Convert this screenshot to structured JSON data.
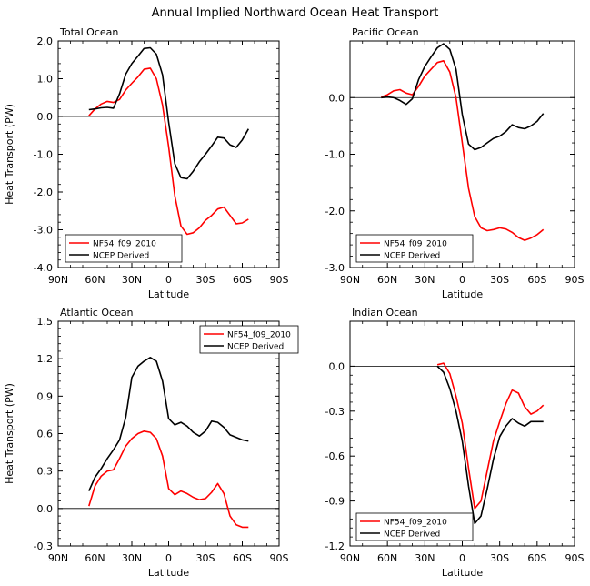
{
  "figure_title": "Annual Implied Northward Ocean Heat Transport",
  "colors": {
    "model": "#ff0000",
    "obs": "#000000",
    "zero_line": "#000000"
  },
  "chart_data": [
    {
      "type": "line",
      "title": "Total Ocean",
      "xlabel": "Latitude",
      "ylabel": "Heat Transport (PW)",
      "xlim": [
        -90,
        90
      ],
      "ylim": [
        -4.0,
        2.0
      ],
      "xticks": [
        -90,
        -60,
        -30,
        0,
        30,
        60,
        90
      ],
      "xticklabels": [
        "90N",
        "60N",
        "30N",
        "0",
        "30S",
        "60S",
        "90S"
      ],
      "yticks": [
        -4.0,
        -3.0,
        -2.0,
        -1.0,
        0.0,
        1.0,
        2.0
      ],
      "yticklabels": [
        "-4.0",
        "-3.0",
        "-2.0",
        "-1.0",
        "0.0",
        "1.0",
        "2.0"
      ],
      "legend_position": "lower-left",
      "series": [
        {
          "name": "NF54_f09_2010",
          "color": "#ff0000",
          "x": [
            -65,
            -60,
            -55,
            -50,
            -45,
            -40,
            -35,
            -30,
            -25,
            -20,
            -15,
            -10,
            -5,
            0,
            5,
            10,
            15,
            20,
            25,
            30,
            35,
            40,
            45,
            50,
            55,
            60,
            65
          ],
          "y": [
            0.02,
            0.2,
            0.33,
            0.4,
            0.37,
            0.45,
            0.7,
            0.88,
            1.05,
            1.25,
            1.28,
            1.0,
            0.3,
            -0.8,
            -2.1,
            -2.9,
            -3.12,
            -3.08,
            -2.95,
            -2.75,
            -2.62,
            -2.45,
            -2.4,
            -2.62,
            -2.84,
            -2.82,
            -2.72
          ]
        },
        {
          "name": "NCEP Derived",
          "color": "#000000",
          "x": [
            -65,
            -60,
            -55,
            -50,
            -45,
            -40,
            -35,
            -30,
            -25,
            -20,
            -15,
            -10,
            -5,
            0,
            5,
            10,
            15,
            20,
            25,
            30,
            35,
            40,
            45,
            50,
            55,
            60,
            65
          ],
          "y": [
            0.18,
            0.2,
            0.23,
            0.24,
            0.22,
            0.6,
            1.12,
            1.4,
            1.6,
            1.8,
            1.82,
            1.65,
            1.1,
            -0.15,
            -1.25,
            -1.62,
            -1.65,
            -1.45,
            -1.2,
            -1.0,
            -0.78,
            -0.55,
            -0.57,
            -0.75,
            -0.82,
            -0.62,
            -0.33
          ]
        }
      ]
    },
    {
      "type": "line",
      "title": "Pacific Ocean",
      "xlabel": "Latitude",
      "ylabel": "",
      "xlim": [
        -90,
        90
      ],
      "ylim": [
        -3.0,
        1.0
      ],
      "xticks": [
        -90,
        -60,
        -30,
        0,
        30,
        60,
        90
      ],
      "xticklabels": [
        "90N",
        "60N",
        "30N",
        "0",
        "30S",
        "60S",
        "90S"
      ],
      "yticks": [
        -3.0,
        -2.0,
        -1.0,
        0.0
      ],
      "yticklabels": [
        "-3.0",
        "-2.0",
        "-1.0",
        "0.0"
      ],
      "legend_position": "lower-left",
      "series": [
        {
          "name": "NF54_f09_2010",
          "color": "#ff0000",
          "x": [
            -65,
            -60,
            -55,
            -50,
            -45,
            -40,
            -35,
            -30,
            -25,
            -20,
            -15,
            -10,
            -5,
            0,
            5,
            10,
            15,
            20,
            25,
            30,
            35,
            40,
            45,
            50,
            55,
            60,
            65
          ],
          "y": [
            0.01,
            0.05,
            0.12,
            0.14,
            0.08,
            0.05,
            0.2,
            0.38,
            0.5,
            0.62,
            0.65,
            0.45,
            0.0,
            -0.8,
            -1.6,
            -2.1,
            -2.3,
            -2.35,
            -2.33,
            -2.3,
            -2.32,
            -2.38,
            -2.47,
            -2.52,
            -2.48,
            -2.42,
            -2.33
          ]
        },
        {
          "name": "NCEP Derived",
          "color": "#000000",
          "x": [
            -65,
            -60,
            -55,
            -50,
            -45,
            -40,
            -35,
            -30,
            -25,
            -20,
            -15,
            -10,
            -5,
            0,
            5,
            10,
            15,
            20,
            25,
            30,
            35,
            40,
            45,
            50,
            55,
            60,
            65
          ],
          "y": [
            0.0,
            0.01,
            0.0,
            -0.05,
            -0.12,
            -0.02,
            0.32,
            0.55,
            0.72,
            0.88,
            0.95,
            0.85,
            0.5,
            -0.3,
            -0.82,
            -0.92,
            -0.88,
            -0.8,
            -0.72,
            -0.68,
            -0.6,
            -0.48,
            -0.53,
            -0.55,
            -0.5,
            -0.42,
            -0.28
          ]
        }
      ]
    },
    {
      "type": "line",
      "title": "Atlantic Ocean",
      "xlabel": "Latitude",
      "ylabel": "Heat Transport (PW)",
      "xlim": [
        -90,
        90
      ],
      "ylim": [
        -0.3,
        1.5
      ],
      "xticks": [
        -90,
        -60,
        -30,
        0,
        30,
        60,
        90
      ],
      "xticklabels": [
        "90N",
        "60N",
        "30N",
        "0",
        "30S",
        "60S",
        "90S"
      ],
      "yticks": [
        -0.3,
        0.0,
        0.3,
        0.6,
        0.9,
        1.2,
        1.5
      ],
      "yticklabels": [
        "-0.3",
        "0.0",
        "0.3",
        "0.6",
        "0.9",
        "1.2",
        "1.5"
      ],
      "legend_position": "top-right",
      "series": [
        {
          "name": "NF54_f09_2010",
          "color": "#ff0000",
          "x": [
            -65,
            -60,
            -55,
            -50,
            -45,
            -40,
            -35,
            -30,
            -25,
            -20,
            -15,
            -10,
            -5,
            0,
            5,
            10,
            15,
            20,
            25,
            30,
            35,
            40,
            45,
            50,
            55,
            60,
            65
          ],
          "y": [
            0.02,
            0.18,
            0.26,
            0.3,
            0.31,
            0.4,
            0.5,
            0.56,
            0.6,
            0.62,
            0.61,
            0.56,
            0.42,
            0.16,
            0.11,
            0.14,
            0.12,
            0.09,
            0.07,
            0.08,
            0.13,
            0.2,
            0.12,
            -0.06,
            -0.13,
            -0.15,
            -0.15
          ]
        },
        {
          "name": "NCEP Derived",
          "color": "#000000",
          "x": [
            -65,
            -60,
            -55,
            -50,
            -45,
            -40,
            -35,
            -30,
            -25,
            -20,
            -15,
            -10,
            -5,
            0,
            5,
            10,
            15,
            20,
            25,
            30,
            35,
            40,
            45,
            50,
            55,
            60,
            65
          ],
          "y": [
            0.14,
            0.25,
            0.32,
            0.4,
            0.47,
            0.55,
            0.73,
            1.05,
            1.14,
            1.18,
            1.21,
            1.18,
            1.02,
            0.72,
            0.67,
            0.69,
            0.66,
            0.61,
            0.58,
            0.62,
            0.7,
            0.69,
            0.65,
            0.59,
            0.57,
            0.55,
            0.54
          ]
        }
      ]
    },
    {
      "type": "line",
      "title": "Indian Ocean",
      "xlabel": "Latitude",
      "ylabel": "",
      "xlim": [
        -90,
        90
      ],
      "ylim": [
        -1.2,
        0.3
      ],
      "xticks": [
        -90,
        -60,
        -30,
        0,
        30,
        60,
        90
      ],
      "xticklabels": [
        "90N",
        "60N",
        "30N",
        "0",
        "30S",
        "60S",
        "90S"
      ],
      "yticks": [
        -1.2,
        -0.9,
        -0.6,
        -0.3,
        0.0
      ],
      "yticklabels": [
        "-1.2",
        "-0.9",
        "-0.6",
        "-0.3",
        "0.0"
      ],
      "legend_position": "lower-left",
      "series": [
        {
          "name": "NF54_f09_2010",
          "color": "#ff0000",
          "x": [
            -20,
            -15,
            -10,
            -5,
            0,
            5,
            10,
            15,
            20,
            25,
            30,
            35,
            40,
            45,
            50,
            55,
            60,
            65
          ],
          "y": [
            0.01,
            0.02,
            -0.05,
            -0.2,
            -0.38,
            -0.68,
            -0.95,
            -0.9,
            -0.7,
            -0.5,
            -0.37,
            -0.25,
            -0.16,
            -0.18,
            -0.27,
            -0.32,
            -0.3,
            -0.26
          ]
        },
        {
          "name": "NCEP Derived",
          "color": "#000000",
          "x": [
            -20,
            -15,
            -10,
            -5,
            0,
            5,
            10,
            15,
            20,
            25,
            30,
            35,
            40,
            45,
            50,
            55,
            60,
            65
          ],
          "y": [
            0.0,
            -0.04,
            -0.15,
            -0.3,
            -0.5,
            -0.8,
            -1.05,
            -1.0,
            -0.82,
            -0.62,
            -0.47,
            -0.4,
            -0.35,
            -0.38,
            -0.4,
            -0.37,
            -0.37,
            -0.37
          ]
        }
      ]
    }
  ]
}
